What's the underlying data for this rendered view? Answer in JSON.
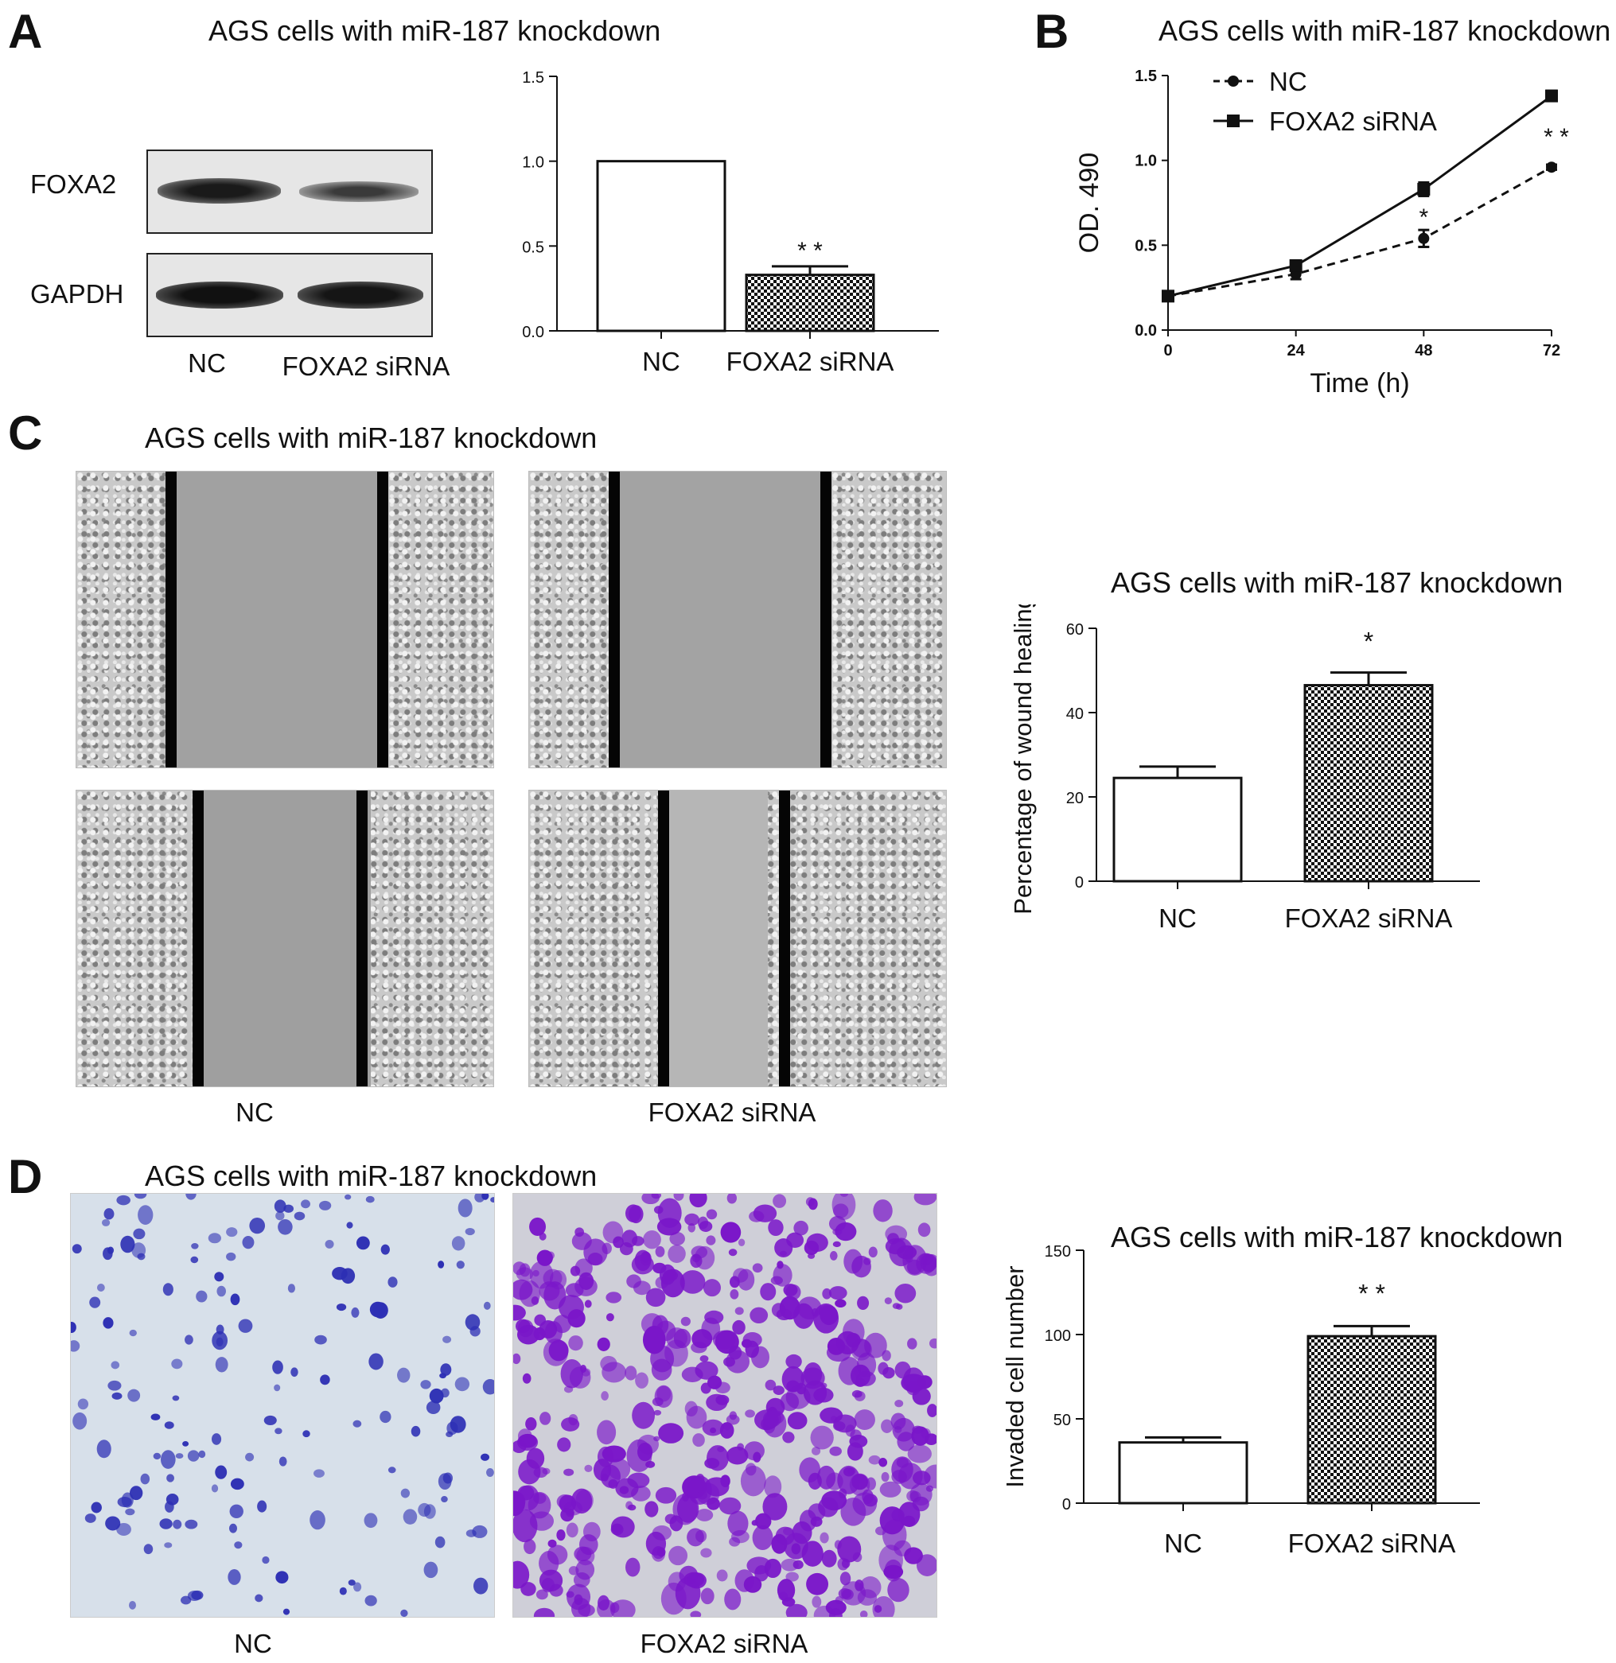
{
  "panels": {
    "a": {
      "letter": "A",
      "title": "AGS cells with miR-187 knockdown",
      "blot": {
        "row_labels": [
          "FOXA2",
          "GAPDH"
        ],
        "lane_labels": [
          "NC",
          "FOXA2 siRNA"
        ]
      }
    },
    "b": {
      "letter": "B",
      "title": "AGS cells with miR-187 knockdown"
    },
    "c": {
      "letter": "C",
      "title": "AGS cells with miR-187 knockdown",
      "image_labels": [
        "NC",
        "FOXA2 siRNA"
      ],
      "chart_title": "AGS cells with miR-187 knockdown"
    },
    "d": {
      "letter": "D",
      "title": "AGS cells with miR-187 knockdown",
      "image_labels": [
        "NC",
        "FOXA2 siRNA"
      ],
      "chart_title": "AGS cells with miR-187 knockdown"
    }
  },
  "chart_data": [
    {
      "id": "a-bar",
      "type": "bar",
      "categories": [
        "NC",
        "FOXA2 siRNA"
      ],
      "values": [
        1.0,
        0.33
      ],
      "errors": [
        0,
        0.05
      ],
      "significance": [
        "",
        "* *"
      ],
      "fills": [
        "white",
        "checker"
      ],
      "ylim": [
        0,
        1.5
      ],
      "yticks": [
        "0.0",
        "0.5",
        "1.0",
        "1.5"
      ],
      "ytick_values": [
        0,
        0.5,
        1.0,
        1.5
      ],
      "title": "",
      "xlabel": "",
      "ylabel": ""
    },
    {
      "id": "b-line",
      "type": "line",
      "x": [
        0,
        24,
        48,
        72
      ],
      "xticks": [
        "0",
        "24",
        "48",
        "72"
      ],
      "xlabel": "Time (h)",
      "ylabel": "OD. 490",
      "ylim": [
        0,
        1.5
      ],
      "yticks": [
        "0.0",
        "0.5",
        "1.0",
        "1.5"
      ],
      "ytick_values": [
        0,
        0.5,
        1.0,
        1.5
      ],
      "legend_position": "top-left",
      "series": [
        {
          "name": "NC",
          "marker": "circle",
          "dash": "dashed",
          "values": [
            0.2,
            0.33,
            0.54,
            0.96
          ],
          "errors": [
            0.02,
            0.03,
            0.05,
            0.015
          ]
        },
        {
          "name": "FOXA2 siRNA",
          "marker": "square",
          "dash": "solid",
          "values": [
            0.2,
            0.38,
            0.83,
            1.38
          ],
          "errors": [
            0.02,
            0.03,
            0.04,
            0.03
          ]
        }
      ],
      "significance": [
        {
          "x": 48,
          "label": "*"
        },
        {
          "x": 72,
          "label": "* *"
        }
      ]
    },
    {
      "id": "c-bar",
      "type": "bar",
      "title": "AGS cells with miR-187 knockdown",
      "categories": [
        "NC",
        "FOXA2 siRNA"
      ],
      "values": [
        24.5,
        46.5
      ],
      "errors": [
        2.7,
        3.0
      ],
      "significance": [
        "",
        "*"
      ],
      "fills": [
        "white",
        "checker"
      ],
      "ylabel": "Percentage of wound healing",
      "ylim": [
        0,
        60
      ],
      "yticks": [
        "0",
        "20",
        "40",
        "60"
      ],
      "ytick_values": [
        0,
        20,
        40,
        60
      ]
    },
    {
      "id": "d-bar",
      "type": "bar",
      "title": "AGS cells with miR-187 knockdown",
      "categories": [
        "NC",
        "FOXA2 siRNA"
      ],
      "values": [
        36,
        99
      ],
      "errors": [
        3,
        6
      ],
      "significance": [
        "",
        "* *"
      ],
      "fills": [
        "white",
        "checker"
      ],
      "ylabel": "Invaded cell number",
      "ylim": [
        0,
        150
      ],
      "yticks": [
        "0",
        "50",
        "100",
        "150"
      ],
      "ytick_values": [
        0,
        50,
        100,
        150
      ]
    }
  ]
}
